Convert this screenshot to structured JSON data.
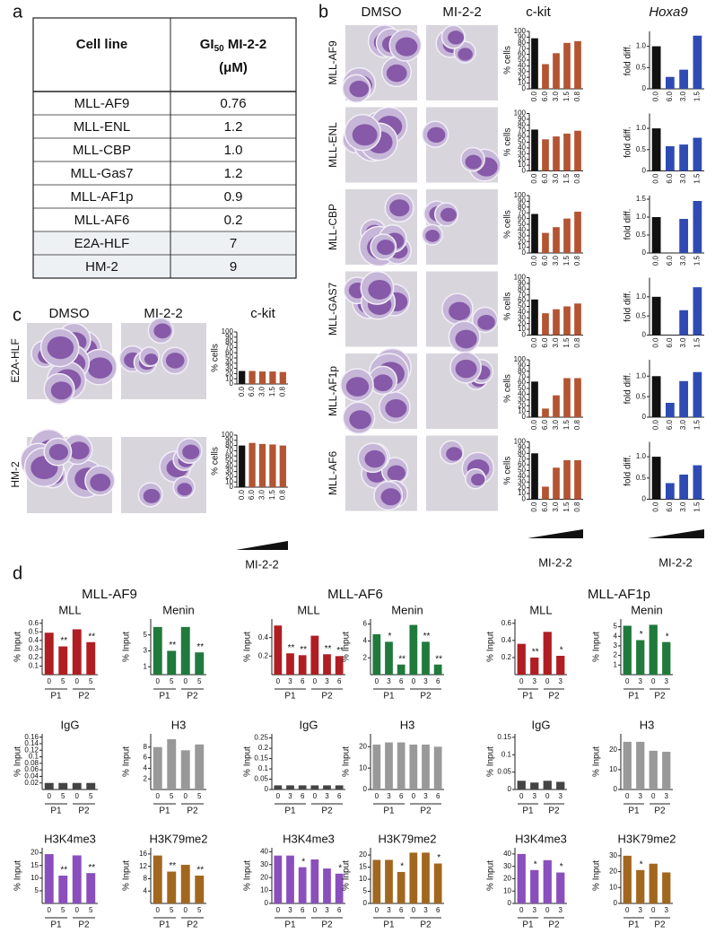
{
  "panel_labels": [
    "a",
    "b",
    "c",
    "d"
  ],
  "table": {
    "header": [
      "Cell line",
      {
        "main": "GI",
        "sub": "50",
        "rest": " MI-2-2",
        "line2": "(μM)"
      }
    ],
    "rows": [
      [
        "MLL-AF9",
        "0.76"
      ],
      [
        "MLL-ENL",
        "1.2"
      ],
      [
        "MLL-CBP",
        "1.0"
      ],
      [
        "MLL-Gas7",
        "1.2"
      ],
      [
        "MLL-AF1p",
        "0.9"
      ],
      [
        "MLL-AF6",
        "0.2"
      ],
      [
        "E2A-HLF",
        "7"
      ],
      [
        "HM-2",
        "9"
      ]
    ]
  },
  "panel_b": {
    "col_headers": [
      "DMSO",
      "MI-2-2",
      "c-kit",
      "Hoxa9"
    ],
    "row_labels": [
      "MLL-AF9",
      "MLL-ENL",
      "MLL-CBP",
      "MLL-GAS7",
      "MLL-AF1p",
      "MLL-AF6"
    ],
    "xlabels": [
      "MI-2-2",
      "MI-2-2"
    ]
  },
  "panel_c": {
    "col_headers": [
      "DMSO",
      "MI-2-2",
      "c-kit"
    ],
    "row_labels": [
      "E2A-HLF",
      "HM-2"
    ],
    "xlabel": "MI-2-2"
  },
  "panel_d": {
    "headers": [
      "MLL-AF9",
      "MLL-AF6",
      "MLL-AF1p"
    ]
  },
  "chart_data": [
    {
      "type": "bar",
      "ylabel": "% cells",
      "categories": [
        "0.0",
        "6.0",
        "3.0",
        "1.5",
        "0.8"
      ],
      "values": [
        88,
        43,
        62,
        80,
        83
      ],
      "color": "#b35433",
      "control_color": "#111111",
      "ylim": [
        0,
        100
      ],
      "yticks": [
        0,
        10,
        20,
        30,
        40,
        50,
        60,
        70,
        80,
        90,
        100
      ]
    },
    {
      "type": "bar",
      "ylabel": "% cells",
      "categories": [
        "0.0",
        "6.0",
        "3.0",
        "1.5",
        "0.8"
      ],
      "values": [
        72,
        55,
        60,
        65,
        70
      ],
      "color": "#b35433",
      "control_color": "#111111",
      "ylim": [
        0,
        100
      ],
      "yticks": [
        0,
        10,
        20,
        30,
        40,
        50,
        60,
        70,
        80,
        90,
        100
      ]
    },
    {
      "type": "bar",
      "ylabel": "% cells",
      "categories": [
        "0.0",
        "6.0",
        "3.0",
        "1.5",
        "0.8"
      ],
      "values": [
        68,
        35,
        45,
        60,
        72
      ],
      "color": "#b35433",
      "control_color": "#111111",
      "ylim": [
        0,
        100
      ],
      "yticks": [
        0,
        10,
        20,
        30,
        40,
        50,
        60,
        70,
        80,
        90,
        100
      ]
    },
    {
      "type": "bar",
      "ylabel": "% cells",
      "categories": [
        "0.0",
        "6.0",
        "3.0",
        "1.5",
        "0.8"
      ],
      "values": [
        62,
        38,
        45,
        50,
        55
      ],
      "color": "#b35433",
      "control_color": "#111111",
      "ylim": [
        0,
        100
      ],
      "yticks": [
        0,
        10,
        20,
        30,
        40,
        50,
        60,
        70,
        80,
        90,
        100
      ]
    },
    {
      "type": "bar",
      "ylabel": "% cells",
      "categories": [
        "0.0",
        "6.0",
        "3.0",
        "1.5",
        "0.8"
      ],
      "values": [
        62,
        15,
        38,
        68,
        68
      ],
      "color": "#b35433",
      "control_color": "#111111",
      "ylim": [
        0,
        100
      ],
      "yticks": [
        0,
        10,
        20,
        30,
        40,
        50,
        60,
        70,
        80,
        90,
        100
      ]
    },
    {
      "type": "bar",
      "ylabel": "% cells",
      "categories": [
        "0.0",
        "6.0",
        "3.0",
        "1.5",
        "0.8"
      ],
      "values": [
        80,
        22,
        55,
        68,
        68
      ],
      "color": "#b35433",
      "control_color": "#111111",
      "ylim": [
        0,
        100
      ],
      "yticks": [
        0,
        10,
        20,
        30,
        40,
        50,
        60,
        70,
        80,
        90,
        100
      ]
    },
    {
      "type": "bar",
      "ylabel": "fold diff.",
      "categories": [
        "0.0",
        "6.0",
        "3.0",
        "1.5"
      ],
      "values": [
        1.0,
        0.28,
        0.45,
        1.25
      ],
      "color": "#2f4bb3",
      "control_color": "#111111",
      "ylim": [
        0,
        1.35
      ],
      "yticks": [
        0,
        0.5,
        {
          "value": 1,
          "label": "1.0"
        }
      ]
    },
    {
      "type": "bar",
      "ylabel": "fold diff.",
      "categories": [
        "0.0",
        "6.0",
        "3.0",
        "1.5"
      ],
      "values": [
        1.0,
        0.58,
        0.62,
        0.78
      ],
      "color": "#2f4bb3",
      "control_color": "#111111",
      "ylim": [
        0,
        1.35
      ],
      "yticks": [
        0,
        0.5,
        {
          "value": 1,
          "label": "1.0"
        }
      ]
    },
    {
      "type": "bar",
      "ylabel": "fold diff.",
      "categories": [
        "0.0",
        "6.0",
        "3.0",
        "1.5"
      ],
      "values": [
        1.0,
        0,
        0.95,
        1.45
      ],
      "color": "#2f4bb3",
      "control_color": "#111111",
      "ylim": [
        0,
        1.6
      ],
      "yticks": [
        0,
        0.5,
        {
          "value": 1,
          "label": "1.0"
        },
        1.5
      ]
    },
    {
      "type": "bar",
      "ylabel": "fold diff.",
      "categories": [
        "0.0",
        "6.0",
        "3.0",
        "1.5"
      ],
      "values": [
        1.0,
        0,
        0.65,
        1.25
      ],
      "color": "#2f4bb3",
      "control_color": "#111111",
      "ylim": [
        0,
        1.5
      ],
      "yticks": [
        0,
        0.5,
        {
          "value": 1,
          "label": "1.0"
        }
      ]
    },
    {
      "type": "bar",
      "ylabel": "fold diff.",
      "categories": [
        "0.0",
        "6.0",
        "3.0",
        "1.5"
      ],
      "values": [
        1.0,
        0.35,
        0.88,
        1.1
      ],
      "color": "#2f4bb3",
      "control_color": "#111111",
      "ylim": [
        0,
        1.4
      ],
      "yticks": [
        0,
        0.5,
        {
          "value": 1,
          "label": "1.0"
        }
      ]
    },
    {
      "type": "bar",
      "ylabel": "fold diff.",
      "categories": [
        "0.0",
        "6.0",
        "3.0",
        "1.5"
      ],
      "values": [
        1.0,
        0.38,
        0.58,
        0.8
      ],
      "color": "#2f4bb3",
      "control_color": "#111111",
      "ylim": [
        0,
        1.35
      ],
      "yticks": [
        0,
        0.5,
        {
          "value": 1,
          "label": "1.0"
        }
      ]
    },
    {
      "type": "bar",
      "ylabel": "% cells",
      "categories": [
        "0.0",
        "6.0",
        "3.0",
        "1.5",
        "0.8"
      ],
      "values": [
        25,
        25,
        24,
        24,
        23
      ],
      "color": "#b35433",
      "control_color": "#111111",
      "ylim": [
        0,
        100
      ],
      "yticks": [
        0,
        10,
        20,
        30,
        40,
        50,
        60,
        70,
        80,
        90,
        100
      ]
    },
    {
      "type": "bar",
      "ylabel": "% cells",
      "categories": [
        "0.0",
        "6.0",
        "3.0",
        "1.5",
        "0.8"
      ],
      "values": [
        80,
        85,
        83,
        82,
        80
      ],
      "color": "#b35433",
      "control_color": "#111111",
      "ylim": [
        0,
        100
      ],
      "yticks": [
        0,
        10,
        20,
        30,
        40,
        50,
        60,
        70,
        80,
        90,
        100
      ]
    },
    {
      "type": "bar",
      "title": "MLL",
      "ylabel": "% Input",
      "categories": [
        "0",
        "5",
        "0",
        "5"
      ],
      "groups": [
        "P1",
        "P2"
      ],
      "values": [
        0.49,
        0.33,
        0.53,
        0.38
      ],
      "stars": [
        null,
        "**",
        null,
        "**"
      ],
      "color": "#b01e23",
      "ylim": [
        0,
        0.65
      ],
      "yticks": [
        0.1,
        0.2,
        0.3,
        0.4,
        0.5,
        0.6
      ]
    },
    {
      "type": "bar",
      "title": "Menin",
      "ylabel": "% Input",
      "categories": [
        "0",
        "5",
        "0",
        "5"
      ],
      "groups": [
        "P1",
        "P2"
      ],
      "values": [
        6.0,
        3.0,
        6.0,
        2.8
      ],
      "stars": [
        null,
        "**",
        null,
        "**"
      ],
      "color": "#1f7a3c",
      "ylim": [
        0,
        7
      ],
      "yticks": [
        1,
        3,
        5
      ]
    },
    {
      "type": "bar",
      "title": "MLL",
      "ylabel": "% Input",
      "categories": [
        "0",
        "3",
        "6",
        "0",
        "3",
        "6"
      ],
      "groups": [
        "P1",
        "P2"
      ],
      "values": [
        0.53,
        0.23,
        0.21,
        0.42,
        0.22,
        0.2
      ],
      "stars": [
        null,
        "**",
        "**",
        null,
        "**",
        "**"
      ],
      "color": "#b01e23",
      "ylim": [
        0,
        0.6
      ],
      "yticks": [
        0.2,
        0.4
      ]
    },
    {
      "type": "bar",
      "title": "Menin",
      "ylabel": "% Input",
      "categories": [
        "0",
        "3",
        "6",
        "0",
        "3",
        "6"
      ],
      "groups": [
        "P1",
        "P2"
      ],
      "values": [
        4.8,
        3.9,
        1.2,
        5.9,
        3.9,
        1.2
      ],
      "stars": [
        null,
        "*",
        "**",
        null,
        "**",
        "**"
      ],
      "color": "#1f7a3c",
      "ylim": [
        0,
        6.6
      ],
      "yticks": [
        2,
        4,
        6
      ]
    },
    {
      "type": "bar",
      "title": "MLL",
      "ylabel": "% Input",
      "categories": [
        "0",
        "3",
        "0",
        "3"
      ],
      "groups": [
        "P1",
        "P2"
      ],
      "values": [
        0.36,
        0.2,
        0.5,
        0.22
      ],
      "stars": [
        null,
        "**",
        null,
        "*"
      ],
      "color": "#b01e23",
      "ylim": [
        0,
        0.65
      ],
      "yticks": [
        0.2,
        0.4,
        0.6
      ]
    },
    {
      "type": "bar",
      "title": "Menin",
      "ylabel": "% Input",
      "categories": [
        "0",
        "3",
        "0",
        "3"
      ],
      "groups": [
        "P1",
        "P2"
      ],
      "values": [
        5.1,
        3.6,
        5.2,
        3.4
      ],
      "stars": [
        null,
        "*",
        null,
        "*"
      ],
      "color": "#1f7a3c",
      "ylim": [
        0,
        5.8
      ],
      "yticks": [
        1,
        2,
        3,
        4,
        5
      ]
    },
    {
      "type": "bar",
      "title": "IgG",
      "ylabel": "% Input",
      "categories": [
        "0",
        "5",
        "0",
        "5"
      ],
      "groups": [
        "P1",
        "P2"
      ],
      "values": [
        0.02,
        0.02,
        0.02,
        0.02
      ],
      "color": "#444444",
      "ylim": [
        0,
        0.17
      ],
      "yticks": [
        0.02,
        0.04,
        0.06,
        0.08,
        0.1,
        0.12,
        0.14,
        0.16
      ]
    },
    {
      "type": "bar",
      "title": "H3",
      "ylabel": "% Input",
      "categories": [
        "0",
        "5",
        "0",
        "5"
      ],
      "groups": [
        "P1",
        "P2"
      ],
      "values": [
        8,
        9.5,
        7.4,
        8.5
      ],
      "color": "#999999",
      "ylim": [
        0,
        10.5
      ],
      "yticks": [
        2,
        4,
        6,
        8
      ]
    },
    {
      "type": "bar",
      "title": "IgG",
      "ylabel": "% Input",
      "categories": [
        "0",
        "3",
        "6",
        "0",
        "3",
        "6"
      ],
      "groups": [
        "P1",
        "P2"
      ],
      "values": [
        0.02,
        0.02,
        0.02,
        0.02,
        0.02,
        0.02
      ],
      "color": "#444444",
      "ylim": [
        0,
        0.27
      ],
      "yticks": [
        0,
        0.05,
        0.1,
        0.15,
        0.2,
        0.25
      ]
    },
    {
      "type": "bar",
      "title": "H3",
      "ylabel": "% Input",
      "categories": [
        "0",
        "3",
        "6",
        "0",
        "3",
        "6"
      ],
      "groups": [
        "P1",
        "P2"
      ],
      "values": [
        21,
        22,
        22,
        21,
        21,
        20
      ],
      "color": "#999999",
      "ylim": [
        0,
        26
      ],
      "yticks": [
        0,
        10,
        20
      ]
    },
    {
      "type": "bar",
      "title": "IgG",
      "ylabel": "% Input",
      "categories": [
        "0",
        "3",
        "0",
        "3"
      ],
      "groups": [
        "P1",
        "P2"
      ],
      "values": [
        0.025,
        0.02,
        0.025,
        0.022
      ],
      "color": "#444444",
      "ylim": [
        0,
        0.16
      ],
      "yticks": [
        0,
        0.05,
        0.1,
        0.15
      ]
    },
    {
      "type": "bar",
      "title": "H3",
      "ylabel": "% Input",
      "categories": [
        "0",
        "3",
        "0",
        "3"
      ],
      "groups": [
        "P1",
        "P2"
      ],
      "values": [
        24,
        24,
        19.5,
        19
      ],
      "color": "#999999",
      "ylim": [
        0,
        28
      ],
      "yticks": [
        0,
        10,
        20
      ]
    },
    {
      "type": "bar",
      "title": "H3K4me3",
      "ylabel": "% Input",
      "categories": [
        "0",
        "5",
        "0",
        "5"
      ],
      "groups": [
        "P1",
        "P2"
      ],
      "values": [
        19.5,
        11,
        19,
        12
      ],
      "stars": [
        null,
        "**",
        null,
        "**"
      ],
      "color": "#8a4fbd",
      "ylim": [
        0,
        22
      ],
      "yticks": [
        5,
        10,
        15,
        20
      ]
    },
    {
      "type": "bar",
      "title": "H3K79me2",
      "ylabel": "% Input",
      "categories": [
        "0",
        "5",
        "0",
        "5"
      ],
      "groups": [
        "P1",
        "P2"
      ],
      "values": [
        15.5,
        10.3,
        12.5,
        9
      ],
      "stars": [
        null,
        "**",
        null,
        "**"
      ],
      "color": "#a2671f",
      "ylim": [
        0,
        18
      ],
      "yticks": [
        4,
        8,
        12,
        16
      ]
    },
    {
      "type": "bar",
      "title": "H3K4me3",
      "ylabel": "% Input",
      "categories": [
        "0",
        "3",
        "6",
        "0",
        "3",
        "6"
      ],
      "groups": [
        "P1",
        "P2"
      ],
      "values": [
        37,
        37,
        28,
        34,
        27,
        23
      ],
      "stars": [
        null,
        null,
        "*",
        null,
        null,
        "*"
      ],
      "color": "#8a4fbd",
      "ylim": [
        0,
        43
      ],
      "yticks": [
        0,
        10,
        20,
        30,
        40
      ]
    },
    {
      "type": "bar",
      "title": "H3K79me2",
      "ylabel": "% Input",
      "categories": [
        "0",
        "3",
        "6",
        "0",
        "3",
        "6"
      ],
      "groups": [
        "P1",
        "P2"
      ],
      "values": [
        18,
        18,
        13,
        21,
        21,
        16.5
      ],
      "stars": [
        null,
        null,
        "*",
        null,
        null,
        "*"
      ],
      "color": "#a2671f",
      "ylim": [
        0,
        23
      ],
      "yticks": [
        0,
        5,
        10,
        15,
        20
      ]
    },
    {
      "type": "bar",
      "title": "H3K4me3",
      "ylabel": "% Input",
      "categories": [
        "0",
        "3",
        "0",
        "3"
      ],
      "groups": [
        "P1",
        "P2"
      ],
      "values": [
        40,
        27,
        35,
        25
      ],
      "stars": [
        null,
        "*",
        null,
        "*"
      ],
      "color": "#8a4fbd",
      "ylim": [
        0,
        45
      ],
      "yticks": [
        0,
        10,
        20,
        30,
        40
      ]
    },
    {
      "type": "bar",
      "title": "H3K79me2",
      "ylabel": "% Input",
      "categories": [
        "0",
        "3",
        "0",
        "3"
      ],
      "groups": [
        "P1",
        "P2"
      ],
      "values": [
        30,
        21,
        25,
        19.5
      ],
      "stars": [
        null,
        "*",
        null,
        null
      ],
      "color": "#a2671f",
      "ylim": [
        0,
        35
      ],
      "yticks": [
        0,
        10,
        20,
        30
      ]
    }
  ]
}
